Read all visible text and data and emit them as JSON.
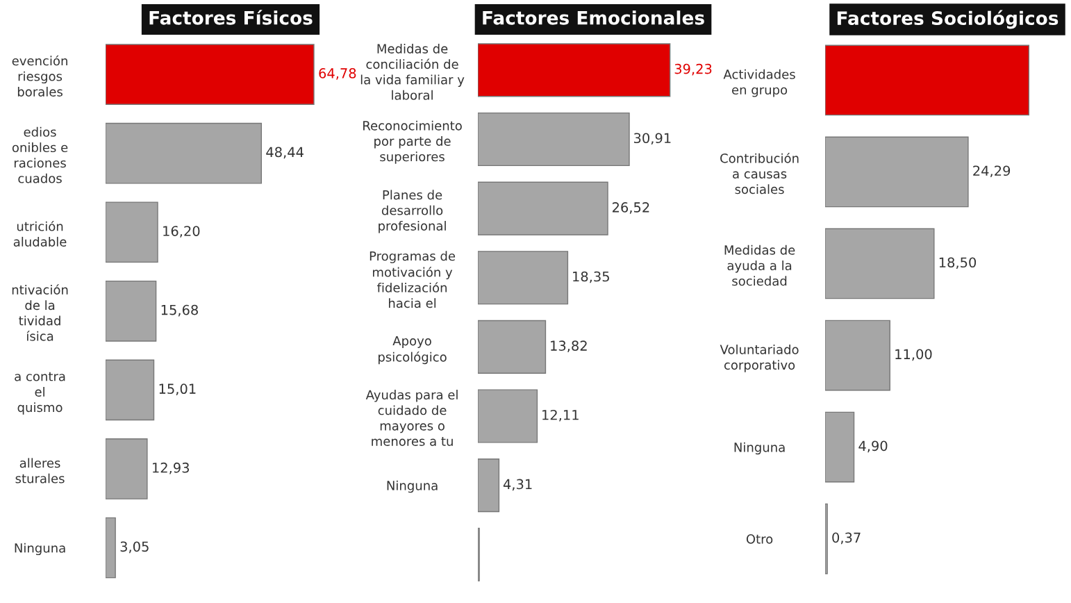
{
  "chart_data": [
    {
      "type": "bar",
      "orientation": "horizontal",
      "title": "Factores Físicos",
      "tick_labels": "y",
      "legend": false,
      "grid": false,
      "categories": [
        "evención\nriesgos\nborales",
        "edios\nonibles e\nraciones\ncuados",
        "utrición\naludable",
        "ntivación\nde la\ntividad\nísica",
        "a contra\nel\nquismo",
        "alleres\nsturales",
        "Ninguna"
      ],
      "values": [
        64.78,
        48.44,
        16.2,
        15.68,
        15.01,
        12.93,
        3.05
      ],
      "colors": [
        "#e00000",
        "#a6a6a6",
        "#a6a6a6",
        "#a6a6a6",
        "#a6a6a6",
        "#a6a6a6",
        "#a6a6a6"
      ],
      "value_labels": [
        "64,78",
        "48,44",
        "16,20",
        "15,68",
        "15,01",
        "12,93",
        "3,05"
      ]
    },
    {
      "type": "bar",
      "orientation": "horizontal",
      "title": "Factores Emocionales",
      "tick_labels": "y",
      "legend": false,
      "grid": false,
      "categories": [
        "Medidas de\nconciliación de\nla vida familiar y\nlaboral",
        "Reconocimiento\npor parte de\nsuperiores",
        "Planes de\ndesarrollo\nprofesional",
        "Programas de\nmotivación y\nfidelización\nhacia el",
        "Apoyo\npsicológico",
        "Ayudas para el\ncuidado de\nmayores o\nmenores a tu",
        "Ninguna",
        null
      ],
      "values": [
        39.23,
        30.91,
        26.52,
        18.35,
        13.82,
        12.11,
        4.31,
        0.3
      ],
      "colors": [
        "#e00000",
        "#a6a6a6",
        "#a6a6a6",
        "#a6a6a6",
        "#a6a6a6",
        "#a6a6a6",
        "#a6a6a6",
        "#a6a6a6"
      ],
      "value_labels": [
        "39,23",
        "30,91",
        "26,52",
        "18,35",
        "13,82",
        "12,11",
        "4,31",
        null
      ]
    },
    {
      "type": "bar",
      "orientation": "horizontal",
      "title": "Factores Sociológicos",
      "tick_labels": "y",
      "legend": false,
      "grid": false,
      "categories": [
        "Actividades\nen grupo",
        "Contribución\na causas\nsociales",
        "Medidas de\nayuda a la\nsociedad",
        "Voluntariado\ncorporativo",
        "Ninguna",
        "Otro"
      ],
      "values": [
        34.6,
        24.29,
        18.5,
        11.0,
        4.9,
        0.37
      ],
      "colors": [
        "#e00000",
        "#a6a6a6",
        "#a6a6a6",
        "#a6a6a6",
        "#a6a6a6",
        "#a6a6a6"
      ],
      "value_labels": [
        null,
        "24,29",
        "18,50",
        "11,00",
        "4,90",
        "0,37"
      ]
    }
  ]
}
